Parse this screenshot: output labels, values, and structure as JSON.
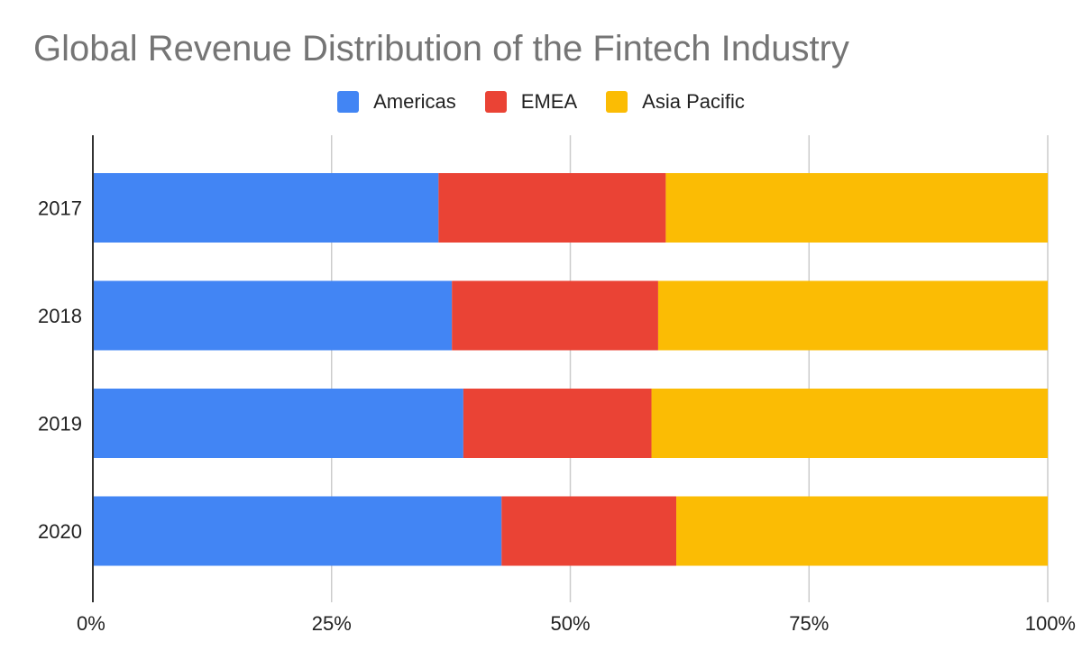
{
  "chart_data": {
    "type": "bar",
    "orientation": "horizontal",
    "stacked": "percent",
    "title": "Global Revenue Distribution of the Fintech Industry",
    "categories": [
      "2017",
      "2018",
      "2019",
      "2020"
    ],
    "series": [
      {
        "name": "Americas",
        "color": "#4285f4",
        "values": [
          36.2,
          37.6,
          38.8,
          42.8
        ]
      },
      {
        "name": "EMEA",
        "color": "#ea4335",
        "values": [
          23.8,
          21.6,
          19.7,
          18.3
        ]
      },
      {
        "name": "Asia Pacific",
        "color": "#fbbc04",
        "values": [
          40.0,
          40.8,
          41.5,
          38.9
        ]
      }
    ],
    "xticks": [
      "0%",
      "25%",
      "50%",
      "75%",
      "100%"
    ],
    "xlim": [
      0,
      100
    ],
    "grid": true,
    "legend_position": "top"
  }
}
